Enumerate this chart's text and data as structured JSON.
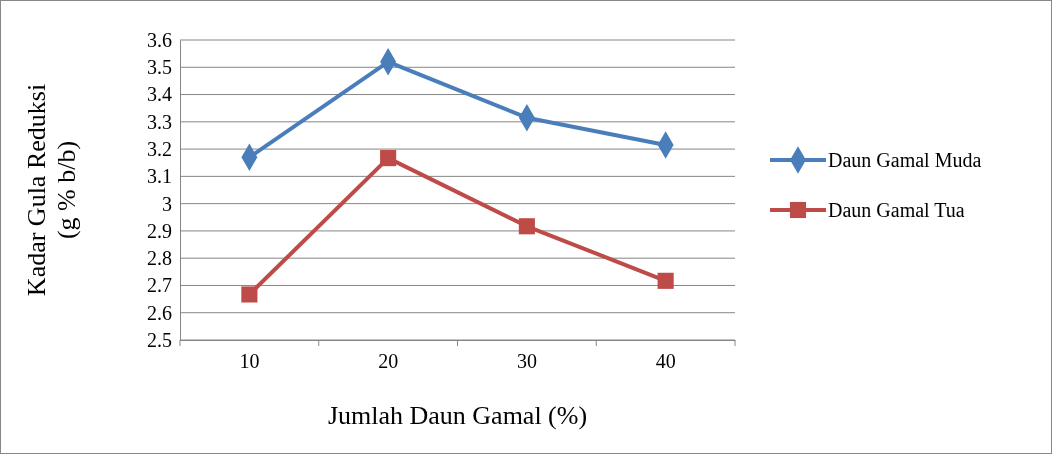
{
  "chart_data": {
    "type": "line",
    "xlabel": "Jumlah Daun Gamal (%)",
    "ylabel": "Kadar Gula Reduksi\n(g % b/b)",
    "categories": [
      "10",
      "20",
      "30",
      "40"
    ],
    "ylim": [
      2.5,
      3.6
    ],
    "yticks": [
      2.5,
      2.6,
      2.7,
      2.8,
      2.9,
      3,
      3.1,
      3.2,
      3.3,
      3.4,
      3.5,
      3.6
    ],
    "grid": "y",
    "legend": "right",
    "line_style": "solid",
    "series": [
      {
        "name": "Daun Gamal Muda",
        "color": "#4a7ebb",
        "marker": "diamond",
        "values": [
          3.17,
          3.52,
          3.315,
          3.215
        ]
      },
      {
        "name": "Daun Gamal Tua",
        "color": "#be4b48",
        "marker": "square",
        "values": [
          2.667,
          3.167,
          2.917,
          2.717
        ]
      }
    ]
  }
}
